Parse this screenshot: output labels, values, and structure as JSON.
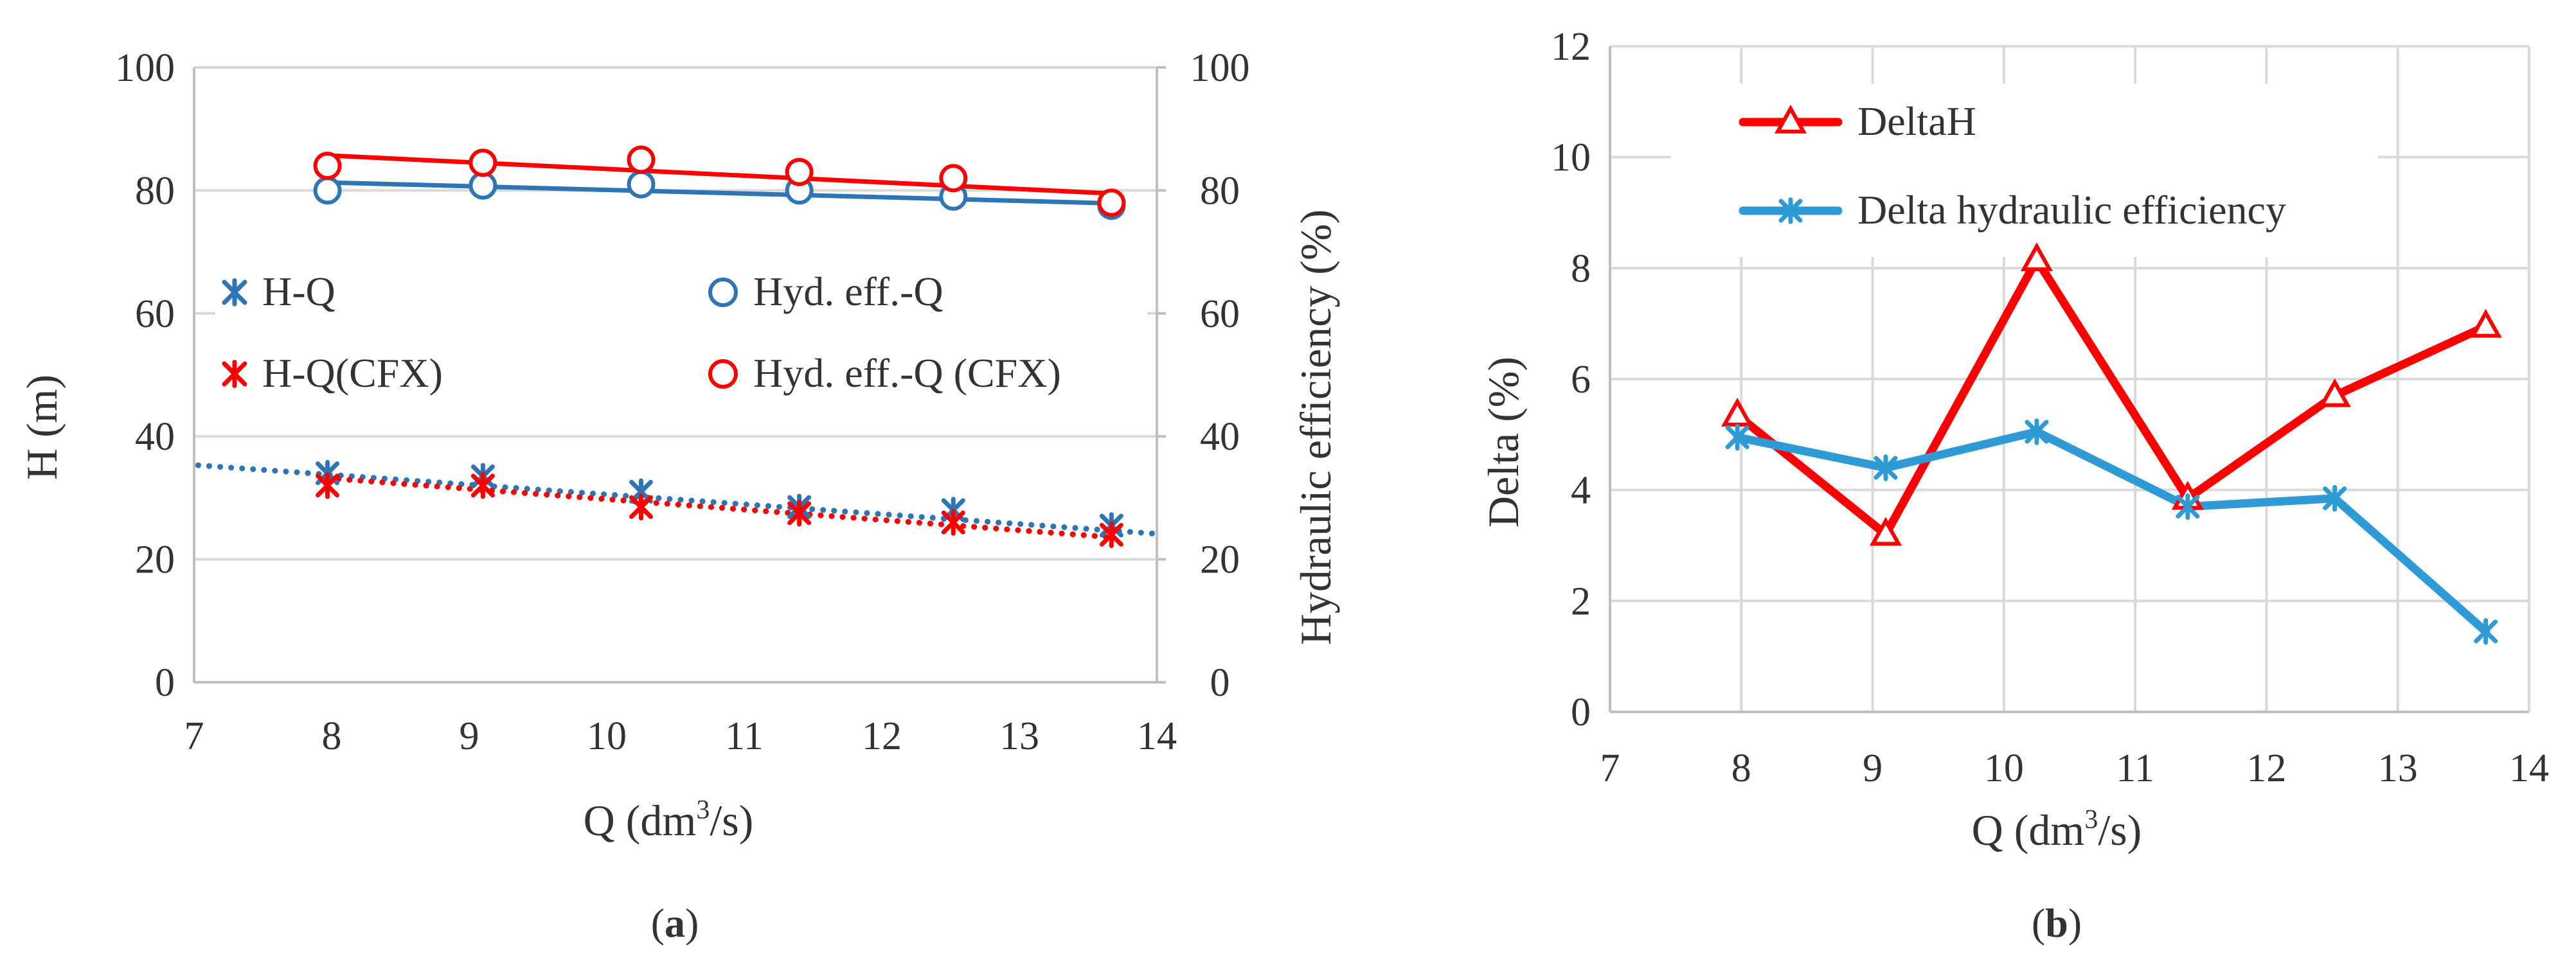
{
  "colors": {
    "blue": "#2E75B6",
    "red": "#FF0000",
    "lightblue": "#2E9BD6",
    "grid": "#D9D9D9",
    "axis": "#BFBFBF",
    "text": "#333333"
  },
  "chart_data": [
    {
      "type": "scatter",
      "panel_label": "a",
      "title": "",
      "xlabel": "Q (dm³/s)",
      "xlabel_parts": {
        "pre": "Q (dm",
        "sup": "3",
        "post": "/s)"
      },
      "ylabel": "H (m)",
      "y2label": "Hydraulic efficiency (%)",
      "xlim": [
        7,
        14
      ],
      "ylim": [
        0,
        100
      ],
      "y2lim": [
        0,
        100
      ],
      "xticks": [
        "7",
        "8",
        "9",
        "10",
        "11",
        "12",
        "13",
        "14"
      ],
      "yticks": [
        "0",
        "20",
        "40",
        "60",
        "80",
        "100"
      ],
      "y2ticks": [
        "0",
        "20",
        "40",
        "60",
        "80",
        "100"
      ],
      "grid": "horizontal",
      "legend_position": "center",
      "series": [
        {
          "name": "H-Q",
          "axis": "left",
          "marker": "asterisk",
          "color": "blue",
          "x": [
            7.97,
            9.1,
            10.25,
            11.4,
            12.52,
            13.67
          ],
          "y": [
            34,
            33.5,
            31,
            28.5,
            28,
            25.5
          ],
          "trendline": {
            "type": "linear",
            "style": "dotted",
            "x": [
              7.03,
              13.97
            ],
            "y": [
              35.3,
              24.2
            ]
          }
        },
        {
          "name": "Hyd. eff.-Q",
          "axis": "right",
          "marker": "circle",
          "color": "blue",
          "x": [
            7.97,
            9.1,
            10.25,
            11.4,
            12.52,
            13.67
          ],
          "y": [
            80,
            80.8,
            81,
            80,
            79,
            77.5
          ],
          "trendline": {
            "type": "linear",
            "style": "solid",
            "x": [
              7.97,
              13.67
            ],
            "y": [
              81.3,
              77.9
            ]
          }
        },
        {
          "name": "H-Q(CFX)",
          "axis": "left",
          "marker": "asterisk",
          "color": "red",
          "x": [
            7.97,
            9.1,
            10.25,
            11.4,
            12.52,
            13.67
          ],
          "y": [
            32,
            32,
            28.5,
            27.5,
            26,
            24
          ],
          "trendline": {
            "type": "linear",
            "style": "dotted",
            "x": [
              7.97,
              13.67
            ],
            "y": [
              33.2,
              23.6
            ]
          }
        },
        {
          "name": "Hyd. eff.-Q (CFX)",
          "axis": "right",
          "marker": "circle",
          "color": "red",
          "x": [
            7.97,
            9.1,
            10.25,
            11.4,
            12.52,
            13.67
          ],
          "y": [
            84,
            84.5,
            85,
            83,
            82,
            78
          ],
          "trendline": {
            "type": "linear",
            "style": "solid",
            "x": [
              7.97,
              13.67
            ],
            "y": [
              85.7,
              79.5
            ]
          }
        }
      ]
    },
    {
      "type": "line",
      "panel_label": "b",
      "title": "",
      "xlabel": "Q (dm³/s)",
      "xlabel_parts": {
        "pre": "Q (dm",
        "sup": "3",
        "post": "/s)"
      },
      "ylabel": "Delta (%)",
      "xlim": [
        7,
        14
      ],
      "ylim": [
        0,
        12
      ],
      "xticks": [
        "7",
        "8",
        "9",
        "10",
        "11",
        "12",
        "13",
        "14"
      ],
      "yticks": [
        "0",
        "2",
        "4",
        "6",
        "8",
        "10",
        "12"
      ],
      "grid": "both",
      "legend_position": "top-left",
      "series": [
        {
          "name": "DeltaH",
          "marker": "triangle",
          "color": "red",
          "x": [
            7.97,
            9.1,
            10.25,
            11.4,
            12.52,
            13.67
          ],
          "y": [
            5.35,
            3.2,
            8.15,
            3.85,
            5.7,
            6.95
          ]
        },
        {
          "name": "Delta hydraulic efficiency",
          "marker": "asterisk",
          "color": "lightblue",
          "x": [
            7.97,
            9.1,
            10.25,
            11.4,
            12.52,
            13.67
          ],
          "y": [
            4.95,
            4.4,
            5.05,
            3.7,
            3.85,
            1.45
          ]
        }
      ]
    }
  ]
}
